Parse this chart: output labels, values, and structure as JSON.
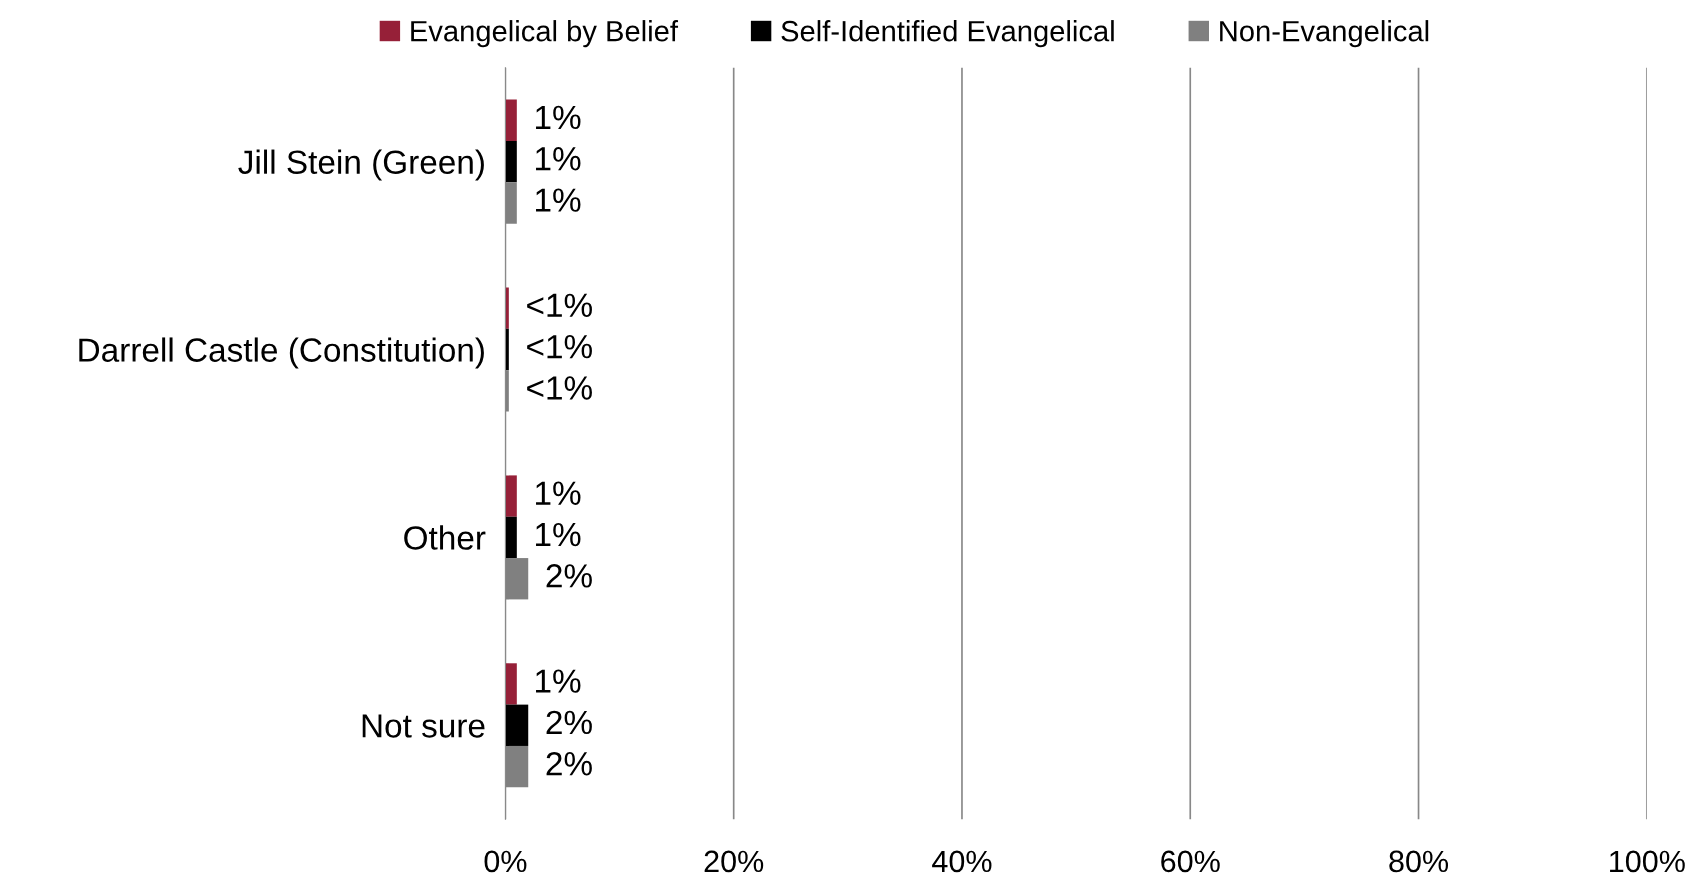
{
  "chart_data": {
    "type": "bar",
    "orientation": "horizontal",
    "categories": [
      "Jill Stein (Green)",
      "Darrell Castle (Constitution)",
      "Other",
      "Not sure"
    ],
    "series": [
      {
        "name": "Evangelical by Belief",
        "color": "#962038",
        "values": [
          1,
          0.3,
          1,
          1
        ],
        "value_labels": [
          "1%",
          "<1%",
          "1%",
          "1%"
        ]
      },
      {
        "name": "Self-Identified Evangelical",
        "color": "#000000",
        "values": [
          1,
          0.3,
          1,
          2
        ],
        "value_labels": [
          "1%",
          "<1%",
          "1%",
          "2%"
        ]
      },
      {
        "name": "Non-Evangelical",
        "color": "#808080",
        "values": [
          1,
          0.3,
          2,
          2
        ],
        "value_labels": [
          "1%",
          "<1%",
          "2%",
          "2%"
        ]
      }
    ],
    "xlim": [
      0,
      100
    ],
    "xticks": [
      {
        "value": 0,
        "label": "0%"
      },
      {
        "value": 20,
        "label": "20%"
      },
      {
        "value": 40,
        "label": "40%"
      },
      {
        "value": 60,
        "label": "60%"
      },
      {
        "value": 80,
        "label": "80%"
      },
      {
        "value": 100,
        "label": "100%"
      }
    ],
    "grid": "x",
    "legend": "top"
  }
}
